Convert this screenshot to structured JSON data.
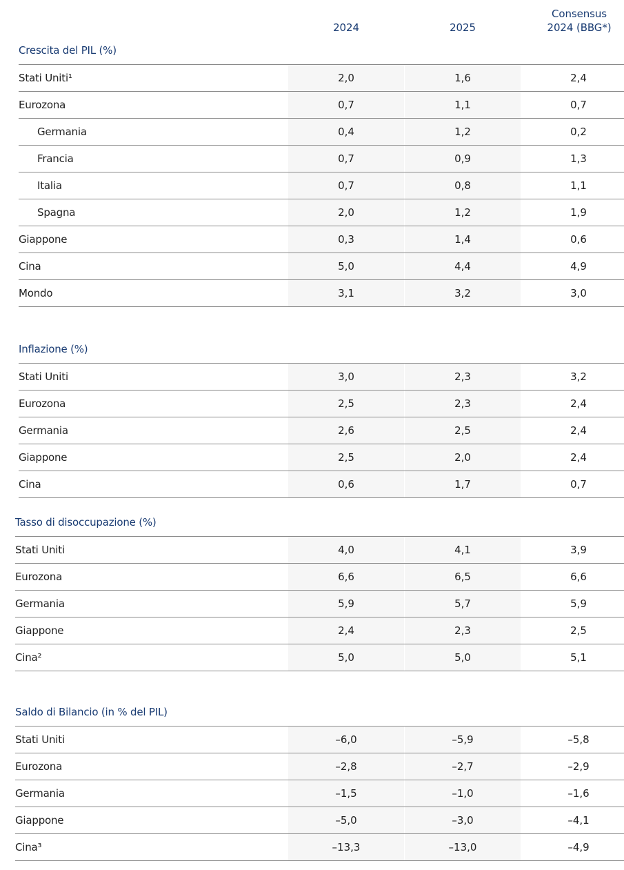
{
  "header": {
    "col_2024": "2024",
    "col_2025": "2025",
    "col_consensus_line1": "Consensus",
    "col_consensus_line2": "2024 (BBG*)"
  },
  "gdp": {
    "title": "Crescita del PIL (%)",
    "rows": [
      {
        "label": "Stati Uniti¹",
        "v2024": "2,0",
        "v2025": "1,6",
        "cons": "2,4"
      },
      {
        "label": "Eurozona",
        "v2024": "0,7",
        "v2025": "1,1",
        "cons": "0,7"
      },
      {
        "label": "Germania",
        "v2024": "0,4",
        "v2025": "1,2",
        "cons": "0,2"
      },
      {
        "label": "Francia",
        "v2024": "0,7",
        "v2025": "0,9",
        "cons": "1,3"
      },
      {
        "label": "Italia",
        "v2024": "0,7",
        "v2025": "0,8",
        "cons": "1,1"
      },
      {
        "label": "Spagna",
        "v2024": "2,0",
        "v2025": "1,2",
        "cons": "1,9"
      },
      {
        "label": "Giappone",
        "v2024": "0,3",
        "v2025": "1,4",
        "cons": "0,6"
      },
      {
        "label": "Cina",
        "v2024": "5,0",
        "v2025": "4,4",
        "cons": "4,9"
      },
      {
        "label": "Mondo",
        "v2024": "3,1",
        "v2025": "3,2",
        "cons": "3,0"
      }
    ]
  },
  "inflation": {
    "title": "Inflazione (%)",
    "rows": [
      {
        "label": "Stati Uniti",
        "v2024": "3,0",
        "v2025": "2,3",
        "cons": "3,2"
      },
      {
        "label": "Eurozona",
        "v2024": "2,5",
        "v2025": "2,3",
        "cons": "2,4"
      },
      {
        "label": "Germania",
        "v2024": "2,6",
        "v2025": "2,5",
        "cons": "2,4"
      },
      {
        "label": "Giappone",
        "v2024": "2,5",
        "v2025": "2,0",
        "cons": "2,4"
      },
      {
        "label": "Cina",
        "v2024": "0,6",
        "v2025": "1,7",
        "cons": "0,7"
      }
    ]
  },
  "unemployment": {
    "title": "Tasso di disoccupazione (%)",
    "rows": [
      {
        "label": "Stati Uniti",
        "v2024": "4,0",
        "v2025": "4,1",
        "cons": "3,9"
      },
      {
        "label": "Eurozona",
        "v2024": "6,6",
        "v2025": "6,5",
        "cons": "6,6"
      },
      {
        "label": "Germania",
        "v2024": "5,9",
        "v2025": "5,7",
        "cons": "5,9"
      },
      {
        "label": "Giappone",
        "v2024": "2,4",
        "v2025": "2,3",
        "cons": "2,5"
      },
      {
        "label": "Cina²",
        "v2024": "5,0",
        "v2025": "5,0",
        "cons": "5,1"
      }
    ]
  },
  "budget": {
    "title": "Saldo di Bilancio (in % del PIL)",
    "rows": [
      {
        "label": "Stati Uniti",
        "v2024": "–6,0",
        "v2025": "–5,9",
        "cons": "–5,8"
      },
      {
        "label": "Eurozona",
        "v2024": "–2,8",
        "v2025": "–2,7",
        "cons": "–2,9"
      },
      {
        "label": "Germania",
        "v2024": "–1,5",
        "v2025": "–1,0",
        "cons": "–1,6"
      },
      {
        "label": "Giappone",
        "v2024": "–5,0",
        "v2025": "–3,0",
        "cons": "–4,1"
      },
      {
        "label": "Cina³",
        "v2024": "–13,3",
        "v2025": "–13,0",
        "cons": "–4,9"
      }
    ]
  }
}
